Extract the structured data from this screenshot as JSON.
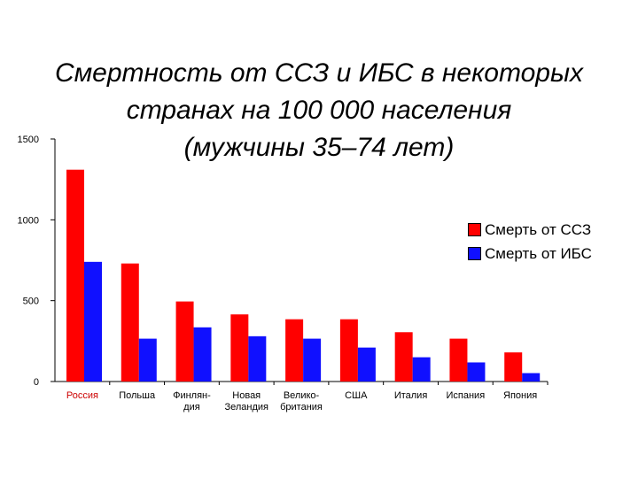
{
  "chart_data": {
    "type": "bar",
    "title": "Смертность от ССЗ и ИБС в некоторых\nстранах на 100 000 населения\n(мужчины 35–74 лет)",
    "categories": [
      "Россия",
      "Польша",
      "Финлян-\nдия",
      "Новая\nЗеландия",
      "Велико-\nбритания",
      "США",
      "Италия",
      "Испания",
      "Япония"
    ],
    "series": [
      {
        "name": "Смерть от ССЗ",
        "color": "#ff0000",
        "values": [
          1310,
          730,
          495,
          415,
          385,
          385,
          305,
          265,
          180
        ]
      },
      {
        "name": "Смерть от ИБС",
        "color": "#1010ff",
        "values": [
          740,
          265,
          335,
          280,
          265,
          210,
          150,
          118,
          52
        ]
      }
    ],
    "ylim": [
      0,
      1500
    ],
    "yticks": [
      0,
      500,
      1000,
      1500
    ],
    "grid": false,
    "legend": "right",
    "highlight_category": {
      "index": 0,
      "color": "#cc0000"
    }
  }
}
